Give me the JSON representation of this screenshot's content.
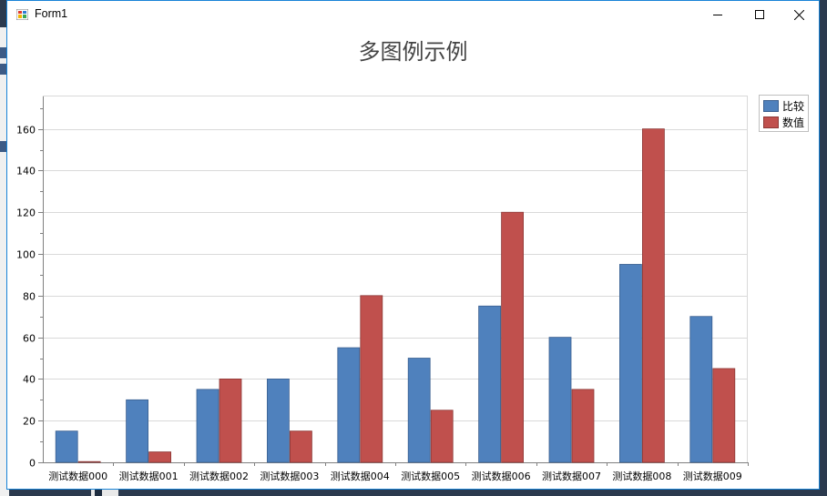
{
  "window": {
    "title": "Form1",
    "controls": {
      "minimize": "minimize",
      "maximize": "maximize",
      "close": "close"
    }
  },
  "chart_data": {
    "type": "bar",
    "title": "多图例示例",
    "categories": [
      "测试数据000",
      "测试数据001",
      "测试数据002",
      "测试数据003",
      "测试数据004",
      "测试数据005",
      "测试数据006",
      "测试数据007",
      "测试数据008",
      "测试数据009"
    ],
    "series": [
      {
        "name": "比较",
        "color": "#4f81bd",
        "values": [
          15,
          30,
          35,
          40,
          55,
          50,
          75,
          60,
          95,
          70
        ]
      },
      {
        "name": "数值",
        "color": "#c0504d",
        "values": [
          0,
          5,
          40,
          15,
          80,
          25,
          120,
          35,
          160,
          45
        ]
      }
    ],
    "ylim": [
      0,
      176
    ],
    "yticks": [
      0,
      20,
      40,
      60,
      80,
      100,
      120,
      140,
      160
    ],
    "grid": true,
    "legend": "top-right"
  }
}
